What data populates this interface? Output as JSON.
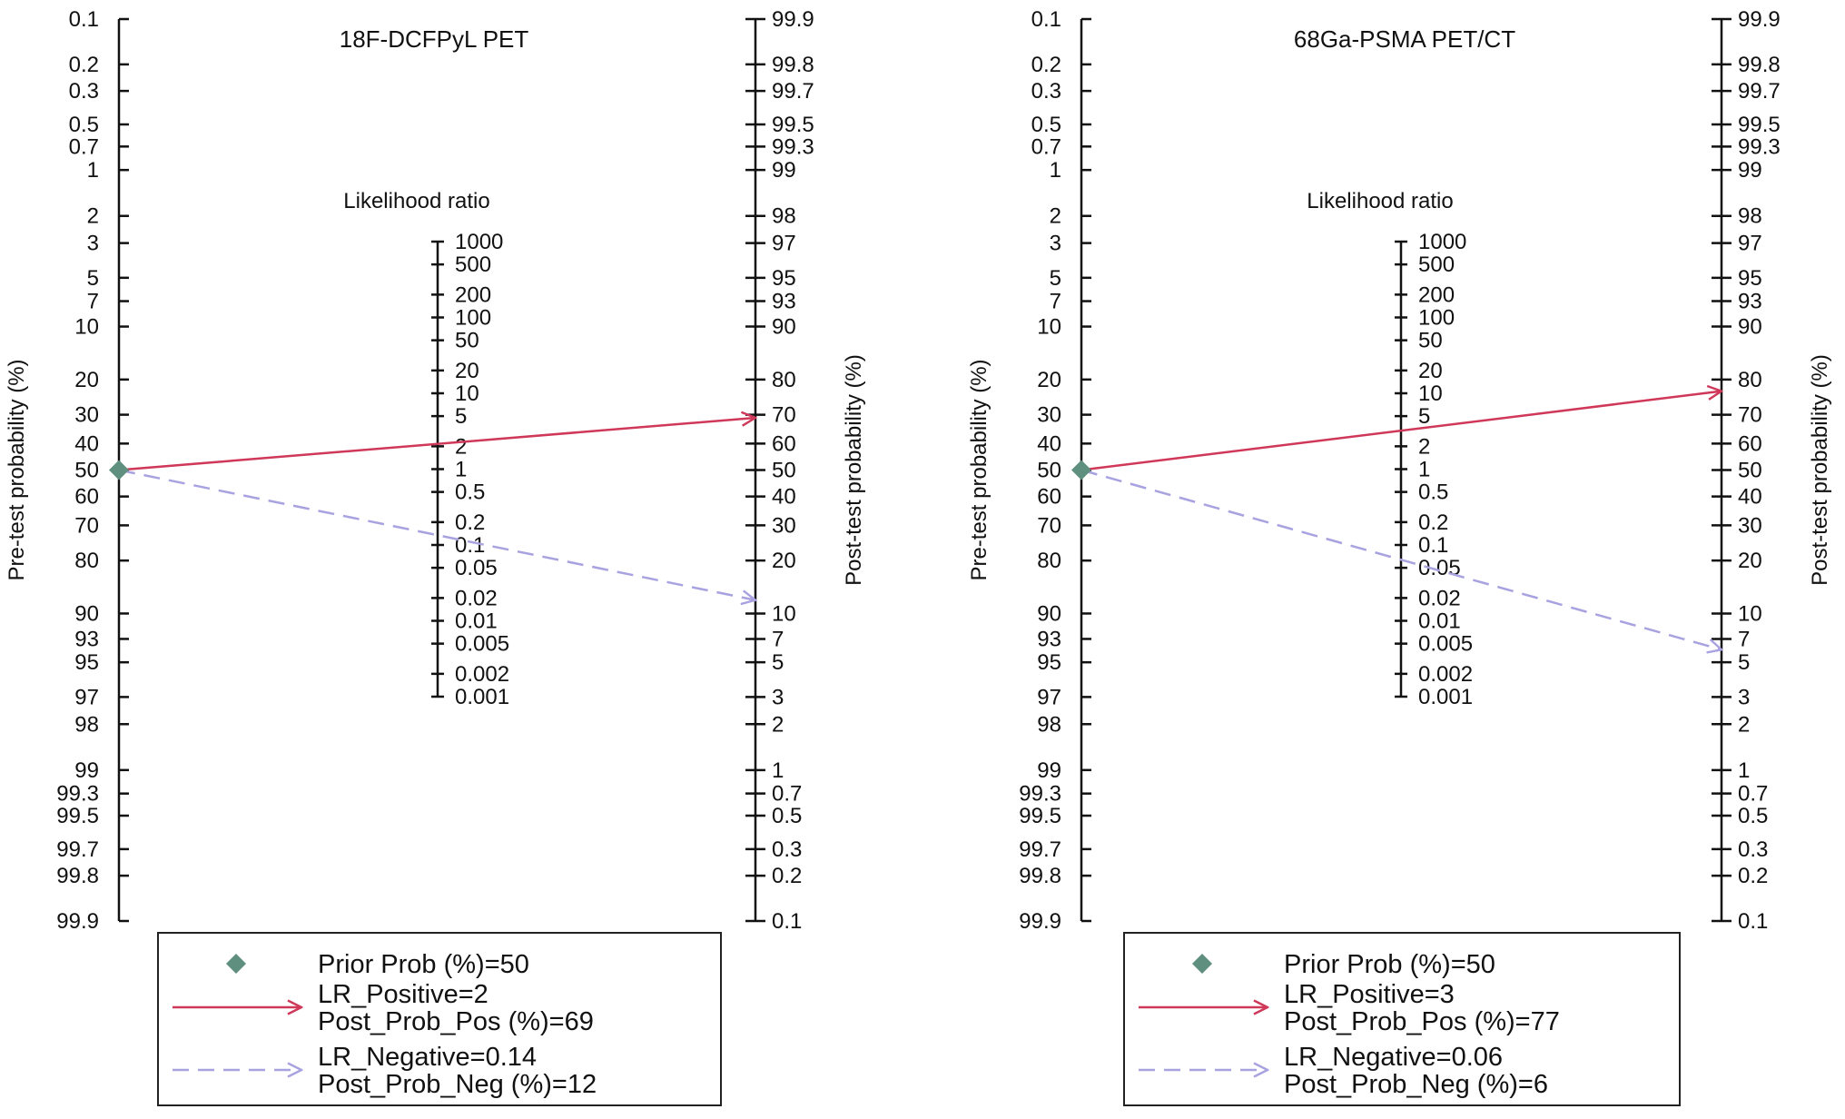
{
  "chart_data": [
    {
      "type": "nomogram",
      "title": "18F-DCFPyL PET",
      "left_axis_label": "Pre-test probability (%)",
      "right_axis_label": "Post-test probability (%)",
      "middle_axis_label": "Likelihood ratio",
      "pre_ticks": [
        "0.1",
        "0.2",
        "0.3",
        "0.5",
        "0.7",
        "1",
        "2",
        "3",
        "5",
        "7",
        "10",
        "20",
        "30",
        "40",
        "50",
        "60",
        "70",
        "80",
        "90",
        "93",
        "95",
        "97",
        "98",
        "99",
        "99.3",
        "99.5",
        "99.7",
        "99.8",
        "99.9"
      ],
      "post_ticks": [
        "99.9",
        "99.8",
        "99.7",
        "99.5",
        "99.3",
        "99",
        "98",
        "97",
        "95",
        "93",
        "90",
        "80",
        "70",
        "60",
        "50",
        "40",
        "30",
        "20",
        "10",
        "7",
        "5",
        "3",
        "2",
        "1",
        "0.7",
        "0.5",
        "0.3",
        "0.2",
        "0.1"
      ],
      "lr_ticks": [
        "1000",
        "500",
        "200",
        "100",
        "50",
        "20",
        "10",
        "5",
        "2",
        "1",
        "0.5",
        "0.2",
        "0.1",
        "0.05",
        "0.02",
        "0.01",
        "0.005",
        "0.002",
        "0.001"
      ],
      "prior_prob": 50,
      "lr_positive": 2,
      "post_prob_pos": 69,
      "lr_negative": 0.14,
      "post_prob_neg": 12,
      "legend": {
        "prior": "Prior Prob (%)=50",
        "pos_line1": "LR_Positive=2",
        "pos_line2": "Post_Prob_Pos (%)=69",
        "neg_line1": "LR_Negative=0.14",
        "neg_line2": "Post_Prob_Neg (%)=12"
      }
    },
    {
      "type": "nomogram",
      "title": "68Ga-PSMA PET/CT",
      "left_axis_label": "Pre-test probability (%)",
      "right_axis_label": "Post-test probability (%)",
      "middle_axis_label": "Likelihood ratio",
      "pre_ticks": [
        "0.1",
        "0.2",
        "0.3",
        "0.5",
        "0.7",
        "1",
        "2",
        "3",
        "5",
        "7",
        "10",
        "20",
        "30",
        "40",
        "50",
        "60",
        "70",
        "80",
        "90",
        "93",
        "95",
        "97",
        "98",
        "99",
        "99.3",
        "99.5",
        "99.7",
        "99.8",
        "99.9"
      ],
      "post_ticks": [
        "99.9",
        "99.8",
        "99.7",
        "99.5",
        "99.3",
        "99",
        "98",
        "97",
        "95",
        "93",
        "90",
        "80",
        "70",
        "60",
        "50",
        "40",
        "30",
        "20",
        "10",
        "7",
        "5",
        "3",
        "2",
        "1",
        "0.7",
        "0.5",
        "0.3",
        "0.2",
        "0.1"
      ],
      "lr_ticks": [
        "1000",
        "500",
        "200",
        "100",
        "50",
        "20",
        "10",
        "5",
        "2",
        "1",
        "0.5",
        "0.2",
        "0.1",
        "0.05",
        "0.02",
        "0.01",
        "0.005",
        "0.002",
        "0.001"
      ],
      "prior_prob": 50,
      "lr_positive": 3,
      "post_prob_pos": 77,
      "lr_negative": 0.06,
      "post_prob_neg": 6,
      "legend": {
        "prior": "Prior Prob (%)=50",
        "pos_line1": "LR_Positive=3",
        "pos_line2": "Post_Prob_Pos (%)=77",
        "neg_line1": "LR_Negative=0.06",
        "neg_line2": "Post_Prob_Neg (%)=6"
      }
    }
  ],
  "colors": {
    "axis": "#111111",
    "positive_line": "#d0385a",
    "negative_line": "#a8a3e0",
    "prior_marker": "#5f8f7e",
    "legend_border": "#222222"
  }
}
